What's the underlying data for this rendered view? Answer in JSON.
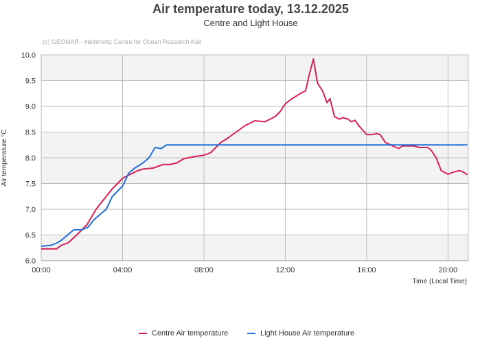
{
  "chart_data": {
    "type": "line",
    "title": "Air temperature today, 13.12.2025",
    "subtitle": "Centre and Light House",
    "credit": "(c) GEOMAR - Helmholtz Centre for Ocean Research Kiel",
    "xlabel": "Time (Local Time)",
    "ylabel": "Air temperature °C",
    "xlim": [
      "00:00",
      "21:00"
    ],
    "ylim": [
      6.0,
      10.0
    ],
    "xticks": [
      "00:00",
      "04:00",
      "08:00",
      "12:00",
      "16:00",
      "20:00"
    ],
    "yticks": [
      "6.0",
      "6.5",
      "7.0",
      "7.5",
      "8.0",
      "8.5",
      "9.0",
      "9.5",
      "10.0"
    ],
    "grid": true,
    "legend_position": "bottom",
    "series": [
      {
        "name": "Centre Air temperature",
        "color": "#d6204f",
        "points": [
          [
            "00:00",
            6.23
          ],
          [
            "00:45",
            6.23
          ],
          [
            "01:00",
            6.3
          ],
          [
            "01:20",
            6.35
          ],
          [
            "01:45",
            6.5
          ],
          [
            "02:15",
            6.7
          ],
          [
            "02:42",
            7.0
          ],
          [
            "03:12",
            7.25
          ],
          [
            "03:30",
            7.4
          ],
          [
            "04:00",
            7.6
          ],
          [
            "04:20",
            7.67
          ],
          [
            "04:45",
            7.75
          ],
          [
            "05:00",
            7.78
          ],
          [
            "05:30",
            7.8
          ],
          [
            "06:00",
            7.87
          ],
          [
            "06:20",
            7.87
          ],
          [
            "06:40",
            7.9
          ],
          [
            "07:00",
            7.98
          ],
          [
            "07:30",
            8.02
          ],
          [
            "08:00",
            8.05
          ],
          [
            "08:20",
            8.1
          ],
          [
            "08:35",
            8.2
          ],
          [
            "08:50",
            8.3
          ],
          [
            "09:10",
            8.38
          ],
          [
            "09:35",
            8.5
          ],
          [
            "10:00",
            8.62
          ],
          [
            "10:30",
            8.72
          ],
          [
            "11:00",
            8.7
          ],
          [
            "11:30",
            8.8
          ],
          [
            "11:45",
            8.9
          ],
          [
            "12:00",
            9.05
          ],
          [
            "12:20",
            9.15
          ],
          [
            "12:50",
            9.27
          ],
          [
            "13:00",
            9.3
          ],
          [
            "13:10",
            9.6
          ],
          [
            "13:23",
            9.92
          ],
          [
            "13:35",
            9.45
          ],
          [
            "13:50",
            9.3
          ],
          [
            "14:03",
            9.07
          ],
          [
            "14:12",
            9.15
          ],
          [
            "14:25",
            8.8
          ],
          [
            "14:40",
            8.75
          ],
          [
            "14:50",
            8.78
          ],
          [
            "15:05",
            8.75
          ],
          [
            "15:15",
            8.7
          ],
          [
            "15:25",
            8.73
          ],
          [
            "15:40",
            8.6
          ],
          [
            "16:00",
            8.45
          ],
          [
            "16:15",
            8.45
          ],
          [
            "16:30",
            8.47
          ],
          [
            "16:40",
            8.45
          ],
          [
            "16:55",
            8.3
          ],
          [
            "17:20",
            8.22
          ],
          [
            "17:35",
            8.18
          ],
          [
            "17:45",
            8.23
          ],
          [
            "18:20",
            8.23
          ],
          [
            "18:35",
            8.2
          ],
          [
            "19:00",
            8.2
          ],
          [
            "19:10",
            8.15
          ],
          [
            "19:25",
            8.0
          ],
          [
            "19:40",
            7.75
          ],
          [
            "20:00",
            7.68
          ],
          [
            "20:20",
            7.73
          ],
          [
            "20:35",
            7.75
          ],
          [
            "20:45",
            7.72
          ],
          [
            "20:57",
            7.67
          ]
        ]
      },
      {
        "name": "Light House Air temperature",
        "color": "#1f6fd6",
        "points": [
          [
            "00:00",
            6.28
          ],
          [
            "00:30",
            6.3
          ],
          [
            "00:48",
            6.35
          ],
          [
            "01:00",
            6.4
          ],
          [
            "01:18",
            6.5
          ],
          [
            "01:36",
            6.6
          ],
          [
            "02:00",
            6.6
          ],
          [
            "02:18",
            6.65
          ],
          [
            "02:36",
            6.8
          ],
          [
            "02:54",
            6.9
          ],
          [
            "03:12",
            7.0
          ],
          [
            "03:30",
            7.25
          ],
          [
            "04:00",
            7.45
          ],
          [
            "04:18",
            7.7
          ],
          [
            "04:36",
            7.8
          ],
          [
            "05:00",
            7.9
          ],
          [
            "05:18",
            8.0
          ],
          [
            "05:36",
            8.2
          ],
          [
            "05:54",
            8.18
          ],
          [
            "06:10",
            8.25
          ],
          [
            "20:57",
            8.25
          ]
        ]
      }
    ]
  }
}
